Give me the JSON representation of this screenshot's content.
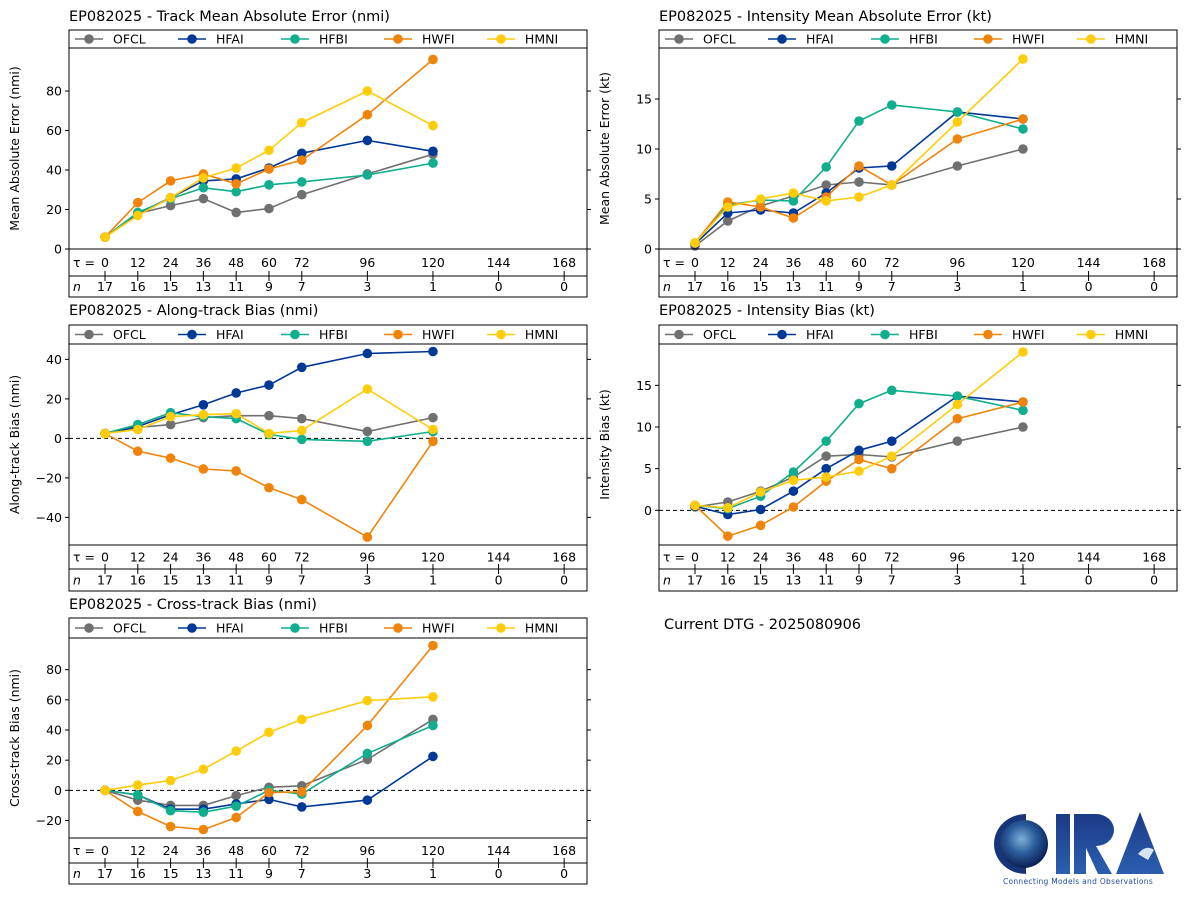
{
  "figure": {
    "current_dtg_label": "Current DTG - 2025080906",
    "logo": {
      "text": "CIRA",
      "tagline": "Connecting Models and Observations"
    }
  },
  "models": [
    {
      "name": "OFCL",
      "color": "#707070"
    },
    {
      "name": "HFAI",
      "color": "#003896"
    },
    {
      "name": "HFBI",
      "color": "#0fae8c"
    },
    {
      "name": "HWFI",
      "color": "#f0840a"
    },
    {
      "name": "HMNI",
      "color": "#ffcc0a"
    }
  ],
  "chart_data": [
    {
      "id": "track-mae",
      "type": "line",
      "title": "EP082025 - Track Mean Absolute Error (nmi)",
      "ylabel": "Mean Absolute Error (nmi)",
      "xlabel": "τ",
      "x": [
        0,
        12,
        24,
        36,
        48,
        60,
        72,
        96,
        120
      ],
      "tau_ticks": [
        0,
        12,
        24,
        36,
        48,
        60,
        72,
        96,
        120,
        144,
        168
      ],
      "n_counts": [
        17,
        16,
        15,
        13,
        11,
        9,
        7,
        3,
        1,
        0,
        0
      ],
      "yticks": [
        0,
        20,
        40,
        60,
        80
      ],
      "ylim": [
        0,
        101.8
      ],
      "zero_line": false,
      "legend": "top",
      "series": [
        {
          "name": "OFCL",
          "values": [
            6,
            18,
            22,
            25.5,
            18.5,
            20.5,
            27.5,
            38,
            48
          ]
        },
        {
          "name": "HFAI",
          "values": [
            6,
            18,
            26,
            34.5,
            35.5,
            41,
            48.5,
            55,
            49.5
          ]
        },
        {
          "name": "HFBI",
          "values": [
            6,
            18.5,
            25.5,
            31,
            29,
            32.5,
            34,
            37.5,
            43.5
          ]
        },
        {
          "name": "HWFI",
          "values": [
            6,
            23.5,
            34.5,
            38,
            33,
            40.5,
            45,
            68,
            96
          ]
        },
        {
          "name": "HMNI",
          "values": [
            6,
            17,
            26,
            36,
            41,
            50,
            64,
            80,
            62.5
          ]
        }
      ]
    },
    {
      "id": "intensity-mae",
      "type": "line",
      "title": "EP082025 - Intensity Mean Absolute Error (kt)",
      "ylabel": "Mean Absolute Error (kt)",
      "xlabel": "τ",
      "x": [
        0,
        12,
        24,
        36,
        48,
        60,
        72,
        96,
        120
      ],
      "tau_ticks": [
        0,
        12,
        24,
        36,
        48,
        60,
        72,
        96,
        120,
        144,
        168
      ],
      "n_counts": [
        17,
        16,
        15,
        13,
        11,
        9,
        7,
        3,
        1,
        0,
        0
      ],
      "yticks": [
        0,
        5,
        10,
        15
      ],
      "ylim": [
        0,
        20.1
      ],
      "zero_line": false,
      "legend": "top",
      "series": [
        {
          "name": "OFCL",
          "values": [
            0.3,
            2.8,
            4.3,
            5.3,
            6.4,
            6.7,
            6.4,
            8.3,
            10
          ]
        },
        {
          "name": "HFAI",
          "values": [
            0.5,
            3.6,
            3.9,
            3.6,
            5.6,
            8.1,
            8.3,
            13.7,
            13
          ]
        },
        {
          "name": "HFBI",
          "values": [
            0.6,
            4.4,
            4.9,
            4.8,
            8.2,
            12.8,
            14.4,
            13.7,
            12
          ]
        },
        {
          "name": "HWFI",
          "values": [
            0.6,
            4.7,
            4.2,
            3.1,
            5.2,
            8.3,
            6.4,
            11,
            13
          ]
        },
        {
          "name": "HMNI",
          "values": [
            0.6,
            4.2,
            5.0,
            5.6,
            4.8,
            5.2,
            6.4,
            12.7,
            19
          ]
        }
      ]
    },
    {
      "id": "along-track-bias",
      "type": "line",
      "title": "EP082025 - Along-track Bias (nmi)",
      "ylabel": "Along-track Bias (nmi)",
      "xlabel": "τ",
      "x": [
        0,
        12,
        24,
        36,
        48,
        60,
        72,
        96,
        120
      ],
      "tau_ticks": [
        0,
        12,
        24,
        36,
        48,
        60,
        72,
        96,
        120,
        144,
        168
      ],
      "n_counts": [
        17,
        16,
        15,
        13,
        11,
        9,
        7,
        3,
        1,
        0,
        0
      ],
      "yticks": [
        -40,
        -20,
        0,
        20,
        40
      ],
      "ylim": [
        -54,
        47.8
      ],
      "zero_line": true,
      "legend": "top",
      "series": [
        {
          "name": "OFCL",
          "values": [
            2.5,
            5.5,
            7,
            10.5,
            11.5,
            11.5,
            10,
            3.5,
            10.5
          ]
        },
        {
          "name": "HFAI",
          "values": [
            2.5,
            6,
            12,
            17,
            23,
            27,
            36,
            43,
            44
          ]
        },
        {
          "name": "HFBI",
          "values": [
            2.5,
            7,
            13,
            11,
            10,
            2,
            -0.5,
            -1.5,
            3.5
          ]
        },
        {
          "name": "HWFI",
          "values": [
            2.5,
            -6.5,
            -10,
            -15.5,
            -16.5,
            -25,
            -31,
            -50,
            -1.5
          ]
        },
        {
          "name": "HMNI",
          "values": [
            2.5,
            4.5,
            11,
            12,
            12.5,
            2.5,
            4,
            25,
            4.5
          ]
        }
      ]
    },
    {
      "id": "intensity-bias",
      "type": "line",
      "title": "EP082025 - Intensity Bias (kt)",
      "ylabel": "Intensity Bias (kt)",
      "xlabel": "τ",
      "x": [
        0,
        12,
        24,
        36,
        48,
        60,
        72,
        96,
        120
      ],
      "tau_ticks": [
        0,
        12,
        24,
        36,
        48,
        60,
        72,
        96,
        120,
        144,
        168
      ],
      "n_counts": [
        17,
        16,
        15,
        13,
        11,
        9,
        7,
        3,
        1,
        0,
        0
      ],
      "yticks": [
        0,
        5,
        10,
        15
      ],
      "ylim": [
        -4.16,
        19.96
      ],
      "zero_line": true,
      "legend": "top",
      "series": [
        {
          "name": "OFCL",
          "values": [
            0.4,
            1.0,
            2.3,
            4.0,
            6.5,
            6.7,
            6.4,
            8.3,
            10
          ]
        },
        {
          "name": "HFAI",
          "values": [
            0.5,
            -0.5,
            0.1,
            2.3,
            5.0,
            7.2,
            8.3,
            13.7,
            13
          ]
        },
        {
          "name": "HFBI",
          "values": [
            0.6,
            0.2,
            1.7,
            4.6,
            8.3,
            12.8,
            14.4,
            13.7,
            12
          ]
        },
        {
          "name": "HWFI",
          "values": [
            0.6,
            -3.1,
            -1.8,
            0.4,
            3.5,
            6.1,
            5.0,
            11,
            13
          ]
        },
        {
          "name": "HMNI",
          "values": [
            0.6,
            0.3,
            2.2,
            3.6,
            4.0,
            4.7,
            6.5,
            12.7,
            19
          ]
        }
      ]
    },
    {
      "id": "cross-track-bias",
      "type": "line",
      "title": "EP082025 - Cross-track Bias (nmi)",
      "ylabel": "Cross-track Bias (nmi)",
      "xlabel": "τ",
      "x": [
        0,
        12,
        24,
        36,
        48,
        60,
        72,
        96,
        120
      ],
      "tau_ticks": [
        0,
        12,
        24,
        36,
        48,
        60,
        72,
        96,
        120,
        144,
        168
      ],
      "n_counts": [
        17,
        16,
        15,
        13,
        11,
        9,
        7,
        3,
        1,
        0,
        0
      ],
      "yticks": [
        -20,
        0,
        20,
        40,
        60,
        80
      ],
      "ylim": [
        -31.6,
        101
      ],
      "zero_line": true,
      "legend": "top",
      "series": [
        {
          "name": "OFCL",
          "values": [
            0,
            -6.5,
            -10,
            -10,
            -3.5,
            2,
            3,
            20.5,
            47
          ]
        },
        {
          "name": "HFAI",
          "values": [
            0,
            -3,
            -12.5,
            -12.5,
            -9,
            -6,
            -11,
            -6.5,
            22.5
          ]
        },
        {
          "name": "HFBI",
          "values": [
            0,
            -3,
            -13.5,
            -14.5,
            -10.5,
            0,
            -2.5,
            24.5,
            43
          ]
        },
        {
          "name": "HWFI",
          "values": [
            0,
            -14,
            -24,
            -26,
            -18,
            -1.5,
            -1,
            43,
            96
          ]
        },
        {
          "name": "HMNI",
          "values": [
            0,
            3.5,
            6.5,
            14,
            26,
            38.5,
            47,
            59.5,
            62
          ]
        }
      ]
    }
  ]
}
